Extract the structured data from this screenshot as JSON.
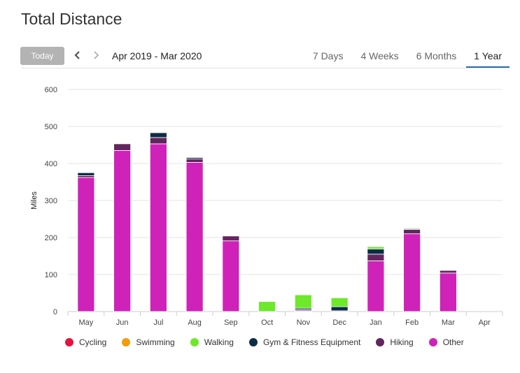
{
  "page": {
    "title": "Total Distance"
  },
  "toolbar": {
    "today_label": "Today",
    "range_label": "Apr 2019 - Mar 2020",
    "tabs": [
      {
        "label": "7 Days",
        "active": false
      },
      {
        "label": "4 Weeks",
        "active": false
      },
      {
        "label": "6 Months",
        "active": false
      },
      {
        "label": "1 Year",
        "active": true
      }
    ]
  },
  "colors": {
    "Cycling": "#e6123d",
    "Swimming": "#f59b0a",
    "Walking": "#6de82a",
    "Gym & Fitness Equipment": "#0d2d46",
    "Hiking": "#62265e",
    "Other": "#cf22b9"
  },
  "chart_data": {
    "type": "bar",
    "stacked": true,
    "categories": [
      "May",
      "Jun",
      "Jul",
      "Aug",
      "Sep",
      "Oct",
      "Nov",
      "Dec",
      "Jan",
      "Feb",
      "Mar",
      "Apr"
    ],
    "series": [
      {
        "name": "Cycling",
        "values": [
          0,
          0,
          0,
          0,
          0,
          0,
          0,
          0,
          0,
          0,
          0,
          0
        ]
      },
      {
        "name": "Swimming",
        "values": [
          0,
          0,
          0,
          0,
          0,
          0,
          0,
          0,
          0,
          0,
          0,
          0
        ]
      },
      {
        "name": "Other",
        "values": [
          362,
          435,
          453,
          403,
          191,
          0,
          2,
          0,
          137,
          210,
          104,
          0
        ]
      },
      {
        "name": "Hiking",
        "values": [
          5,
          18,
          17,
          9,
          13,
          0,
          3,
          2,
          18,
          12,
          7,
          0
        ]
      },
      {
        "name": "Gym & Fitness Equipment",
        "values": [
          8,
          0,
          13,
          4,
          0,
          0,
          4,
          11,
          14,
          2,
          0,
          0
        ]
      },
      {
        "name": "Walking",
        "values": [
          0,
          0,
          0,
          0,
          0,
          27,
          36,
          24,
          6,
          2,
          0,
          0
        ]
      }
    ],
    "xlabel": "",
    "ylabel": "Miles",
    "ylim": [
      0,
      600
    ],
    "yticks": [
      0,
      100,
      200,
      300,
      400,
      500,
      600
    ],
    "grid": true,
    "legend_position": "bottom",
    "legend": [
      "Cycling",
      "Swimming",
      "Walking",
      "Gym & Fitness Equipment",
      "Hiking",
      "Other"
    ]
  }
}
